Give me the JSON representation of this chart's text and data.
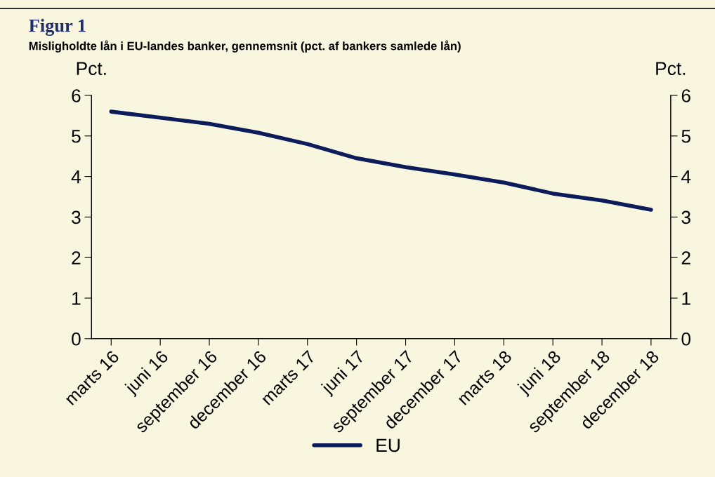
{
  "chart_data": {
    "type": "line",
    "title": "Figur 1",
    "subtitle": "Misligholdte lån i EU-landes banker, gennemsnit (pct. af bankers samlede lån)",
    "ylabel": "Pct.",
    "y2label": "Pct.",
    "categories": [
      "marts 16",
      "juni 16",
      "september 16",
      "december 16",
      "marts 17",
      "juni 17",
      "september 17",
      "december 17",
      "marts 18",
      "juni 18",
      "september 18",
      "december 18"
    ],
    "series": [
      {
        "name": "EU",
        "color": "#0c1c5a",
        "values": [
          5.6,
          5.45,
          5.3,
          5.08,
          4.8,
          4.45,
          4.23,
          4.05,
          3.85,
          3.58,
          3.41,
          3.18
        ]
      }
    ],
    "ylim": [
      0,
      6
    ],
    "yticks": [
      0,
      1,
      2,
      3,
      4,
      5,
      6
    ],
    "y2lim": [
      0,
      6
    ],
    "y2ticks": [
      0,
      1,
      2,
      3,
      4,
      5,
      6
    ],
    "grid": false,
    "legend": "bottom",
    "marker": "none",
    "line_style": "solid"
  }
}
